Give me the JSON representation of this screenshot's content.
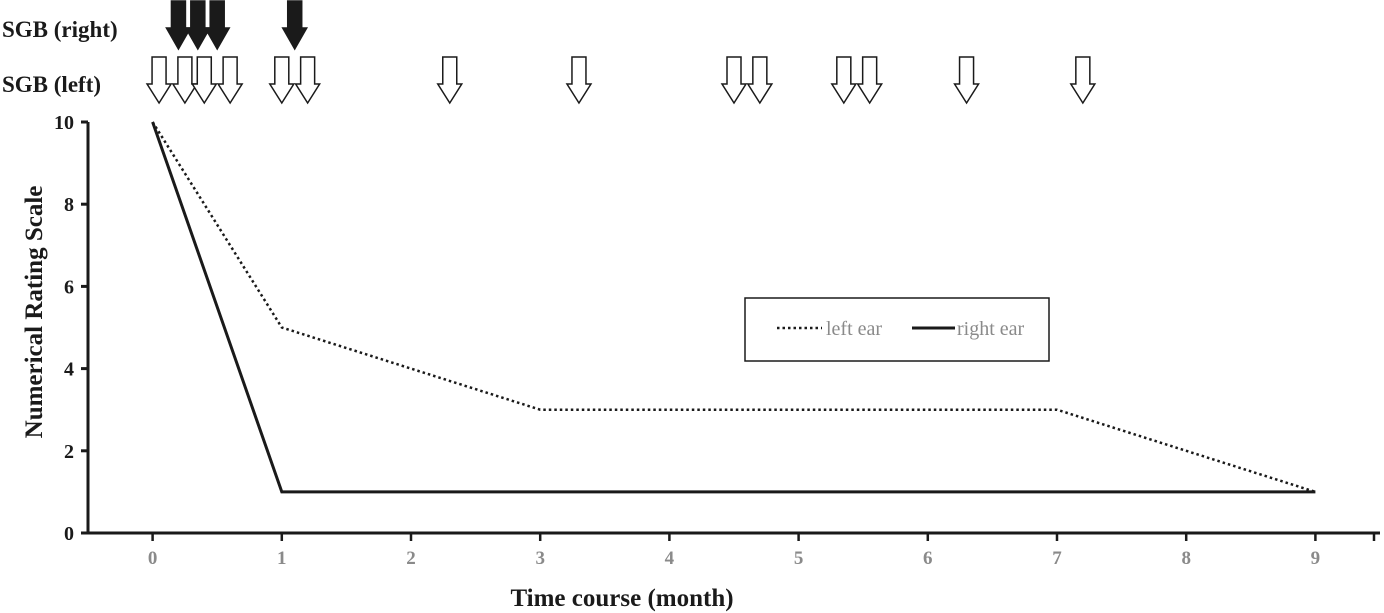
{
  "chart_data": {
    "type": "line",
    "title": "",
    "xlabel": "Time course (month)",
    "ylabel": "Numerical Rating Scale",
    "xlim": [
      -0.5,
      9.5
    ],
    "ylim": [
      0,
      10
    ],
    "x_ticks": [
      "0",
      "1",
      "2",
      "3",
      "4",
      "5",
      "6",
      "7",
      "8",
      "9"
    ],
    "y_ticks": [
      "0",
      "2",
      "4",
      "6",
      "8",
      "10"
    ],
    "legend_placement": "center-right",
    "grid": false,
    "series": [
      {
        "name": "left ear",
        "style": "dotted",
        "color": "#1a1a1a",
        "x": [
          0,
          1,
          3,
          7,
          9
        ],
        "y": [
          10,
          5,
          3,
          3,
          1
        ]
      },
      {
        "name": "right ear",
        "style": "solid",
        "color": "#1a1a1a",
        "x": [
          0,
          1,
          9
        ],
        "y": [
          10,
          1,
          1
        ]
      }
    ],
    "annotations": {
      "sgb_right": {
        "label": "SGB (right)",
        "marker": "filled-down-arrow",
        "x": [
          0.2,
          0.35,
          0.5,
          1.1
        ]
      },
      "sgb_left": {
        "label": "SGB (left)",
        "marker": "open-down-arrow",
        "x": [
          0.05,
          0.25,
          0.4,
          0.6,
          1.0,
          1.2,
          2.3,
          3.3,
          4.5,
          4.7,
          5.35,
          5.55,
          6.3,
          7.2
        ]
      }
    }
  }
}
